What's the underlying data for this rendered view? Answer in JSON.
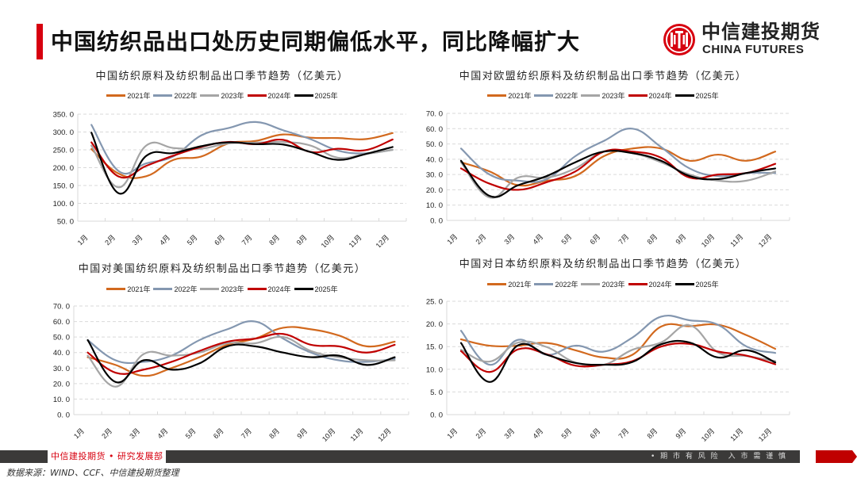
{
  "header": {
    "title": "中国纺织品出口处历史同期偏低水平，同比降幅扩大",
    "logo_cn": "中信建投期货",
    "logo_en": "CHINA FUTURES",
    "accent_color": "#d7000f"
  },
  "footer": {
    "brand": "中信建投期货 • 研究发展部",
    "warning": "• 期 市 有 风 险　入 市 需 谨 慎",
    "source": "数据来源：WIND、CCF、中信建投期货整理"
  },
  "series_colors": {
    "2021年": "#d2691e",
    "2022年": "#8497b0",
    "2023年": "#a5a5a5",
    "2024年": "#c00000",
    "2025年": "#000000"
  },
  "chart_data": [
    {
      "id": "total",
      "type": "line",
      "title": "中国纺织原料及纺织制品出口季节趋势（亿美元）",
      "xlabel": "",
      "ylabel": "",
      "categories": [
        "1月",
        "2月",
        "3月",
        "4月",
        "5月",
        "6月",
        "7月",
        "8月",
        "9月",
        "10月",
        "11月",
        "12月"
      ],
      "ylim": [
        50,
        350
      ],
      "yticks": [
        "50. 0",
        "100. 0",
        "150. 0",
        "200. 0",
        "250. 0",
        "300. 0",
        "350. 0"
      ],
      "grid": true,
      "legend": "top",
      "series": [
        {
          "name": "2021年",
          "values": [
            252,
            183,
            176,
            222,
            231,
            268,
            275,
            293,
            284,
            283,
            280,
            297
          ]
        },
        {
          "name": "2022年",
          "values": [
            320,
            190,
            212,
            232,
            290,
            311,
            328,
            305,
            280,
            248,
            240,
            250
          ]
        },
        {
          "name": "2023年",
          "values": [
            262,
            145,
            262,
            255,
            253,
            268,
            270,
            272,
            262,
            228,
            238,
            250
          ]
        },
        {
          "name": "2024年",
          "values": [
            271,
            175,
            205,
            234,
            258,
            272,
            266,
            278,
            244,
            253,
            249,
            279
          ]
        },
        {
          "name": "2025年",
          "values": [
            298,
            128,
            233,
            241,
            260,
            271,
            266,
            265,
            244,
            222,
            238,
            258
          ]
        }
      ]
    },
    {
      "id": "eu",
      "type": "line",
      "title": "中国对欧盟纺织原料及纺织制品出口季节趋势（亿美元）",
      "xlabel": "",
      "ylabel": "",
      "categories": [
        "1月",
        "2月",
        "3月",
        "4月",
        "5月",
        "6月",
        "7月",
        "8月",
        "9月",
        "10月",
        "11月",
        "12月"
      ],
      "ylim": [
        0,
        70
      ],
      "yticks": [
        "0. 0",
        "10. 0",
        "20. 0",
        "30. 0",
        "40. 0",
        "50. 0",
        "60. 0",
        "70. 0"
      ],
      "grid": true,
      "legend": "top",
      "series": [
        {
          "name": "2021年",
          "values": [
            38,
            32,
            23,
            26,
            29,
            42,
            47,
            47,
            39,
            43,
            39,
            45
          ]
        },
        {
          "name": "2022年",
          "values": [
            47,
            30,
            26,
            27,
            42,
            52,
            60,
            48,
            34,
            29,
            31,
            31
          ]
        },
        {
          "name": "2023年",
          "values": [
            38,
            15,
            28,
            28,
            34,
            45,
            44,
            38,
            30,
            26,
            26,
            32
          ]
        },
        {
          "name": "2024年",
          "values": [
            34,
            24,
            20,
            25,
            32,
            45,
            45,
            41,
            28,
            30,
            31,
            37
          ]
        },
        {
          "name": "2025年",
          "values": [
            39,
            16,
            23,
            29,
            38,
            45,
            44,
            39,
            29,
            27,
            31,
            34
          ]
        }
      ]
    },
    {
      "id": "us",
      "type": "line",
      "title": "中国对美国纺织原料及纺织制品出口季节趋势（亿美元）",
      "xlabel": "",
      "ylabel": "",
      "categories": [
        "1月",
        "2月",
        "3月",
        "4月",
        "5月",
        "6月",
        "7月",
        "8月",
        "9月",
        "10月",
        "11月",
        "12月"
      ],
      "ylim": [
        0,
        70
      ],
      "yticks": [
        "0. 0",
        "10. 0",
        "20. 0",
        "30. 0",
        "40. 0",
        "50. 0",
        "60. 0",
        "70. 0"
      ],
      "grid": true,
      "legend": "top",
      "series": [
        {
          "name": "2021年",
          "values": [
            37,
            32,
            25,
            30,
            37,
            45,
            49,
            56,
            55,
            51,
            44,
            47
          ]
        },
        {
          "name": "2022年",
          "values": [
            48,
            35,
            34,
            38,
            48,
            55,
            60,
            49,
            40,
            35,
            34,
            36
          ]
        },
        {
          "name": "2023年",
          "values": [
            38,
            18,
            39,
            38,
            40,
            46,
            46,
            50,
            41,
            37,
            35,
            35
          ]
        },
        {
          "name": "2024年",
          "values": [
            40,
            27,
            29,
            34,
            41,
            47,
            49,
            52,
            45,
            44,
            40,
            45
          ]
        },
        {
          "name": "2025年",
          "values": [
            48,
            21,
            35,
            29,
            33,
            44,
            44,
            40,
            37,
            38,
            32,
            37
          ]
        }
      ]
    },
    {
      "id": "japan",
      "type": "line",
      "title": "中国对日本纺织原料及纺织制品出口季节趋势（亿美元）",
      "xlabel": "",
      "ylabel": "",
      "categories": [
        "1月",
        "2月",
        "3月",
        "4月",
        "5月",
        "6月",
        "7月",
        "8月",
        "9月",
        "10月",
        "11月",
        "12月"
      ],
      "ylim": [
        0,
        25
      ],
      "yticks": [
        "0. 0",
        "5. 0",
        "10. 0",
        "15. 0",
        "20. 0",
        "25. 0"
      ],
      "grid": true,
      "legend": "top",
      "series": [
        {
          "name": "2021年",
          "values": [
            16.6,
            15.2,
            15.2,
            15.8,
            14.2,
            12.6,
            13.2,
            19.4,
            19.5,
            19.8,
            17.5,
            14.5
          ]
        },
        {
          "name": "2022年",
          "values": [
            18.5,
            11.0,
            16.5,
            13.2,
            15.2,
            13.9,
            17.0,
            21.6,
            20.8,
            19.8,
            15.0,
            13.6
          ]
        },
        {
          "name": "2023年",
          "values": [
            14.3,
            11.7,
            15.9,
            14.9,
            11.5,
            11.0,
            14.3,
            15.9,
            19.7,
            13.7,
            12.9,
            11.8
          ]
        },
        {
          "name": "2024年",
          "values": [
            14.0,
            9.4,
            14.4,
            13.3,
            10.8,
            11.0,
            11.8,
            15.0,
            15.6,
            13.9,
            13.0,
            11.1
          ]
        },
        {
          "name": "2025年",
          "values": [
            15.8,
            7.2,
            15.3,
            13.2,
            11.4,
            11.0,
            11.6,
            15.5,
            15.9,
            12.6,
            14.2,
            11.5
          ]
        }
      ]
    }
  ]
}
